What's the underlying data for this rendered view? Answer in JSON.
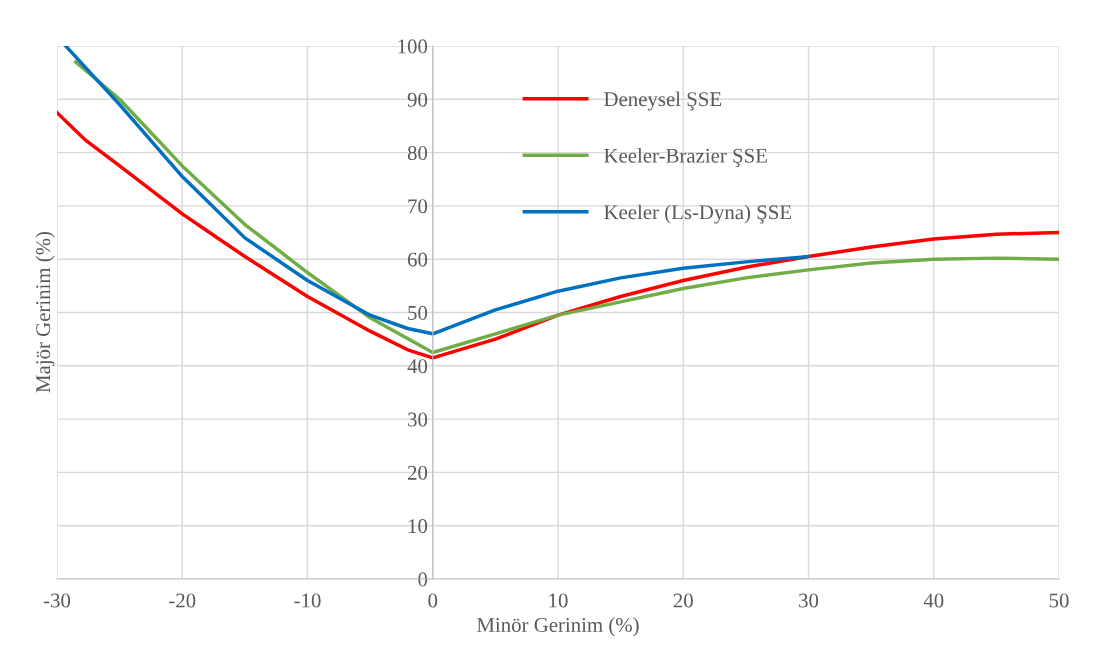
{
  "chart_data": {
    "type": "line",
    "xlabel": "Minör Gerinim (%)",
    "ylabel": "Majör Gerinim (%)",
    "xlim": [
      -30,
      50
    ],
    "xticks": [
      -30,
      -20,
      -10,
      0,
      10,
      20,
      30,
      40,
      50
    ],
    "ylim": [
      0,
      100
    ],
    "yticks": [
      0,
      10,
      20,
      30,
      40,
      50,
      60,
      70,
      80,
      90,
      100
    ],
    "grid": true,
    "legend": "top",
    "marker": "none",
    "line_style": "solid",
    "series": [
      {
        "name": "Deneysel ŞSE",
        "color": "#ff0000",
        "x": [
          -30,
          -27.8,
          -25,
          -20,
          -17.5,
          -15,
          -10,
          -5,
          -2,
          0,
          5,
          10,
          15,
          20,
          25,
          30,
          35,
          40,
          45,
          50
        ],
        "values": [
          87.5,
          82.5,
          77.5,
          68.5,
          64.5,
          60.5,
          53,
          46.5,
          43,
          41.5,
          45,
          49.5,
          53,
          56,
          58.5,
          60.5,
          62.3,
          63.8,
          64.7,
          65
        ]
      },
      {
        "name": "Keeler-Brazier ŞSE",
        "color": "#70ad47",
        "x": [
          -28.5,
          -25,
          -20,
          -15,
          -10,
          -5,
          0,
          5,
          10,
          15,
          20,
          25,
          30,
          35,
          40,
          45,
          50
        ],
        "values": [
          97,
          90,
          77.5,
          66.5,
          57.5,
          49,
          42.5,
          46,
          49.5,
          52,
          54.5,
          56.5,
          58,
          59.3,
          60,
          60.2,
          60
        ]
      },
      {
        "name": "Keeler (Ls-Dyna) ŞSE",
        "color": "#0070c0",
        "x": [
          -29.3,
          -25,
          -20,
          -15,
          -10,
          -5,
          -2,
          0,
          5,
          10,
          15,
          20,
          25,
          30
        ],
        "values": [
          100,
          89,
          75.5,
          64,
          56,
          49.5,
          47,
          46,
          50.5,
          54,
          56.5,
          58.3,
          59.5,
          60.5
        ]
      }
    ]
  }
}
